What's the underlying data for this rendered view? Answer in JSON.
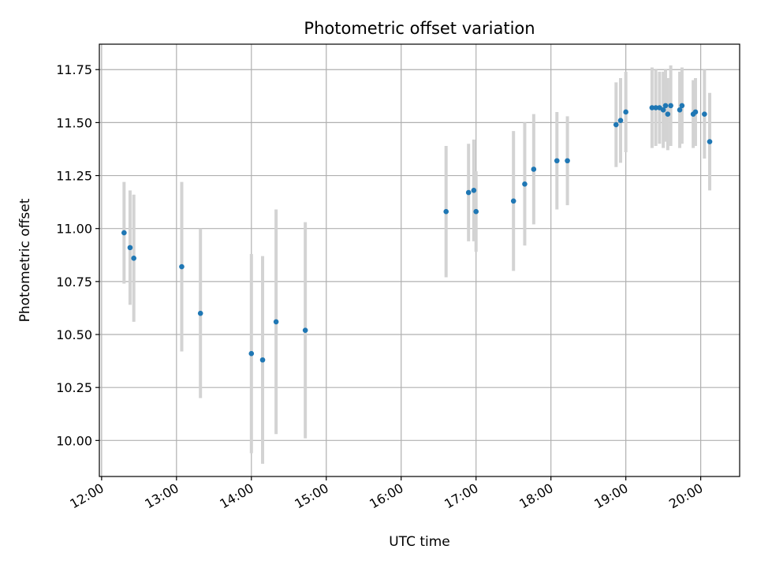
{
  "chart_data": {
    "type": "scatter",
    "title": "Photometric offset variation",
    "xlabel": "UTC time",
    "ylabel": "Photometric offset",
    "grid": true,
    "legend": false,
    "x_unit": "UTC hour of day",
    "xlim": [
      11.97,
      20.52
    ],
    "ylim": [
      9.83,
      11.87
    ],
    "x_ticks": [
      {
        "value": 12,
        "label": "12:00"
      },
      {
        "value": 13,
        "label": "13:00"
      },
      {
        "value": 14,
        "label": "14:00"
      },
      {
        "value": 15,
        "label": "15:00"
      },
      {
        "value": 16,
        "label": "16:00"
      },
      {
        "value": 17,
        "label": "17:00"
      },
      {
        "value": 18,
        "label": "18:00"
      },
      {
        "value": 19,
        "label": "19:00"
      },
      {
        "value": 20,
        "label": "20:00"
      }
    ],
    "y_ticks": [
      {
        "value": 10.0,
        "label": "10.00"
      },
      {
        "value": 10.25,
        "label": "10.25"
      },
      {
        "value": 10.5,
        "label": "10.50"
      },
      {
        "value": 10.75,
        "label": "10.75"
      },
      {
        "value": 11.0,
        "label": "11.00"
      },
      {
        "value": 11.25,
        "label": "11.25"
      },
      {
        "value": 11.5,
        "label": "11.50"
      },
      {
        "value": 11.75,
        "label": "11.75"
      }
    ],
    "marker_color": "#1f77b4",
    "errorbar_color": "#d3d3d3",
    "grid_color": "#b0b0b0",
    "points": [
      {
        "x": 12.3,
        "y": 10.98,
        "yerr": 0.24
      },
      {
        "x": 12.38,
        "y": 10.91,
        "yerr": 0.27
      },
      {
        "x": 12.43,
        "y": 10.86,
        "yerr": 0.3
      },
      {
        "x": 13.07,
        "y": 10.82,
        "yerr": 0.4
      },
      {
        "x": 13.32,
        "y": 10.6,
        "yerr": 0.4
      },
      {
        "x": 14.0,
        "y": 10.41,
        "yerr": 0.47
      },
      {
        "x": 14.15,
        "y": 10.38,
        "yerr": 0.49
      },
      {
        "x": 14.33,
        "y": 10.56,
        "yerr": 0.53
      },
      {
        "x": 14.72,
        "y": 10.52,
        "yerr": 0.51
      },
      {
        "x": 16.6,
        "y": 11.08,
        "yerr": 0.31
      },
      {
        "x": 16.9,
        "y": 11.17,
        "yerr": 0.23
      },
      {
        "x": 16.97,
        "y": 11.18,
        "yerr": 0.24
      },
      {
        "x": 17.0,
        "y": 11.08,
        "yerr": 0.19
      },
      {
        "x": 17.5,
        "y": 11.13,
        "yerr": 0.33
      },
      {
        "x": 17.65,
        "y": 11.21,
        "yerr": 0.29
      },
      {
        "x": 17.77,
        "y": 11.28,
        "yerr": 0.26
      },
      {
        "x": 18.08,
        "y": 11.32,
        "yerr": 0.23
      },
      {
        "x": 18.22,
        "y": 11.32,
        "yerr": 0.21
      },
      {
        "x": 18.87,
        "y": 11.49,
        "yerr": 0.2
      },
      {
        "x": 18.93,
        "y": 11.51,
        "yerr": 0.2
      },
      {
        "x": 19.0,
        "y": 11.55,
        "yerr": 0.19
      },
      {
        "x": 19.35,
        "y": 11.57,
        "yerr": 0.19
      },
      {
        "x": 19.4,
        "y": 11.57,
        "yerr": 0.18
      },
      {
        "x": 19.45,
        "y": 11.57,
        "yerr": 0.17
      },
      {
        "x": 19.5,
        "y": 11.56,
        "yerr": 0.18
      },
      {
        "x": 19.53,
        "y": 11.58,
        "yerr": 0.17
      },
      {
        "x": 19.56,
        "y": 11.54,
        "yerr": 0.17
      },
      {
        "x": 19.6,
        "y": 11.58,
        "yerr": 0.19
      },
      {
        "x": 19.72,
        "y": 11.56,
        "yerr": 0.18
      },
      {
        "x": 19.75,
        "y": 11.58,
        "yerr": 0.18
      },
      {
        "x": 19.9,
        "y": 11.54,
        "yerr": 0.16
      },
      {
        "x": 19.93,
        "y": 11.55,
        "yerr": 0.16
      },
      {
        "x": 20.05,
        "y": 11.54,
        "yerr": 0.21
      },
      {
        "x": 20.12,
        "y": 11.41,
        "yerr": 0.23
      }
    ]
  }
}
